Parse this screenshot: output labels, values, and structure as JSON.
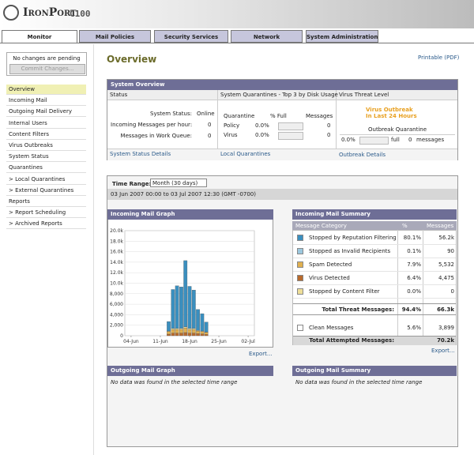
{
  "header": {
    "brand": "IronPort",
    "model": "C100"
  },
  "tabs": [
    "Monitor",
    "Mail Policies",
    "Security Services",
    "Network",
    "System Administration"
  ],
  "sidebar": {
    "pending": "No changes are pending",
    "commit": "Commit Changes...",
    "nav": [
      "Overview",
      "Incoming Mail",
      "Outgoing Mail Delivery",
      "Internal Users",
      "Content Filters",
      "Virus Outbreaks",
      "System Status",
      "Quarantines",
      "> Local Quarantines",
      "> External Quarantines",
      "Reports",
      "> Report Scheduling",
      "> Archived Reports"
    ]
  },
  "page": {
    "title": "Overview",
    "printable": "Printable (PDF)"
  },
  "system_overview": {
    "title": "System Overview",
    "status": {
      "heading": "Status",
      "rows": [
        [
          "System Status:",
          "Online"
        ],
        [
          "Incoming Messages per hour:",
          "0"
        ],
        [
          "Messages in Work Queue:",
          "0"
        ]
      ],
      "link": "System Status Details"
    },
    "quarantines": {
      "heading": "System Quarantines - Top 3 by Disk Usage",
      "columns": [
        "Quarantine",
        "% Full",
        "Messages"
      ],
      "rows": [
        [
          "Policy",
          "0.0%",
          "0"
        ],
        [
          "Virus",
          "0.0%",
          "0"
        ]
      ],
      "link": "Local Quarantines"
    },
    "virus": {
      "heading": "Virus Threat Level",
      "alert": [
        "Virus Outbreak",
        "In Last 24 Hours"
      ],
      "quarantine": "Outbreak Quarantine",
      "percent": "0.0%",
      "full": "full",
      "count": "0",
      "messages": "messages",
      "link": "Outbreak Details"
    }
  },
  "reports": {
    "time_range_label": "Time Range:",
    "time_range": "Month (30 days)",
    "date_range": "03 Jun 2007 00:00 to 03 Jul 2007 12:30 (GMT -0700)"
  },
  "incoming_graph": {
    "title": "Incoming Mail Graph",
    "type": "bar",
    "stacked": true,
    "categories": [
      null,
      "04-Jun",
      null,
      null,
      null,
      null,
      null,
      null,
      "11-Jun",
      null,
      null,
      null,
      null,
      null,
      null,
      "18-Jun",
      null,
      null,
      null,
      null,
      null,
      null,
      "25-Jun",
      null,
      null,
      null,
      null,
      null,
      null,
      "02-Jul",
      null
    ],
    "series": [
      {
        "color": "#b86a2c",
        "values": [
          0,
          0,
          0,
          0,
          0,
          0,
          0,
          0,
          0,
          0,
          300,
          500,
          500,
          500,
          600,
          500,
          500,
          400,
          350,
          250,
          0,
          0,
          0,
          0,
          0,
          0,
          0,
          0,
          0,
          0,
          0
        ]
      },
      {
        "color": "#e0b050",
        "values": [
          0,
          0,
          0,
          0,
          0,
          0,
          0,
          0,
          0,
          0,
          500,
          700,
          700,
          700,
          900,
          700,
          700,
          500,
          450,
          400,
          0,
          0,
          0,
          0,
          0,
          0,
          0,
          0,
          0,
          0,
          0
        ]
      },
      {
        "color": "#f2e6a8",
        "values": [
          0,
          0,
          0,
          0,
          0,
          0,
          0,
          0,
          0,
          0,
          100,
          200,
          200,
          200,
          200,
          200,
          200,
          100,
          100,
          50,
          0,
          0,
          0,
          0,
          0,
          0,
          0,
          0,
          0,
          0,
          0
        ]
      },
      {
        "color": "#3a8fbf",
        "values": [
          0,
          0,
          0,
          0,
          0,
          0,
          0,
          0,
          0,
          0,
          1800,
          7400,
          8100,
          7900,
          12600,
          8000,
          7300,
          4000,
          3300,
          1900,
          0,
          0,
          0,
          0,
          0,
          0,
          0,
          0,
          0,
          0,
          0
        ]
      }
    ],
    "ylim": [
      0,
      20000
    ],
    "yticks": [
      0,
      {
        "value": 2000,
        "label": "2,000"
      },
      {
        "value": 4000,
        "label": "4,000"
      },
      {
        "value": 6000,
        "label": "6,000"
      },
      {
        "value": 8000,
        "label": "8,000"
      },
      {
        "value": 10000,
        "label": "10.0k"
      },
      {
        "value": 12000,
        "label": "12.0k"
      },
      {
        "value": 14000,
        "label": "14.0k"
      },
      {
        "value": 16000,
        "label": "16.0k"
      },
      {
        "value": 18000,
        "label": "18.0k"
      },
      {
        "value": 20000,
        "label": "20.0k"
      }
    ],
    "grid": true,
    "export": "Export..."
  },
  "incoming_summary": {
    "title": "Incoming Mail Summary",
    "columns": [
      "Message Category",
      "%",
      "Messages"
    ],
    "rows": [
      {
        "label": "Stopped by Reputation Filtering",
        "percent": "80.1%",
        "messages": "56.2k",
        "color": "#3a8fbf"
      },
      {
        "label": "Stopped as Invalid Recipients",
        "percent": "0.1%",
        "messages": "90",
        "color": "#9cc8de"
      },
      {
        "label": "Spam Detected",
        "percent": "7.9%",
        "messages": "5,532",
        "color": "#e0b050"
      },
      {
        "label": "Virus Detected",
        "percent": "6.4%",
        "messages": "4,475",
        "color": "#b86a2c"
      },
      {
        "label": "Stopped by Content Filter",
        "percent": "0.0%",
        "messages": "0",
        "color": "#eede98"
      }
    ],
    "total_threat": {
      "label": "Total Threat Messages:",
      "percent": "94.4%",
      "messages": "66.3k"
    },
    "clean": {
      "label": "Clean Messages",
      "percent": "5.6%",
      "messages": "3,899",
      "color": "#ffffff"
    },
    "total_attempted": {
      "label": "Total Attempted Messages:",
      "messages": "70.2k"
    },
    "export": "Export..."
  },
  "outgoing_graph": {
    "title": "Outgoing Mail Graph",
    "message": "No data was found in the selected time range"
  },
  "outgoing_summary": {
    "title": "Outgoing Mail Summary",
    "message": "No data was found in the selected time range"
  }
}
